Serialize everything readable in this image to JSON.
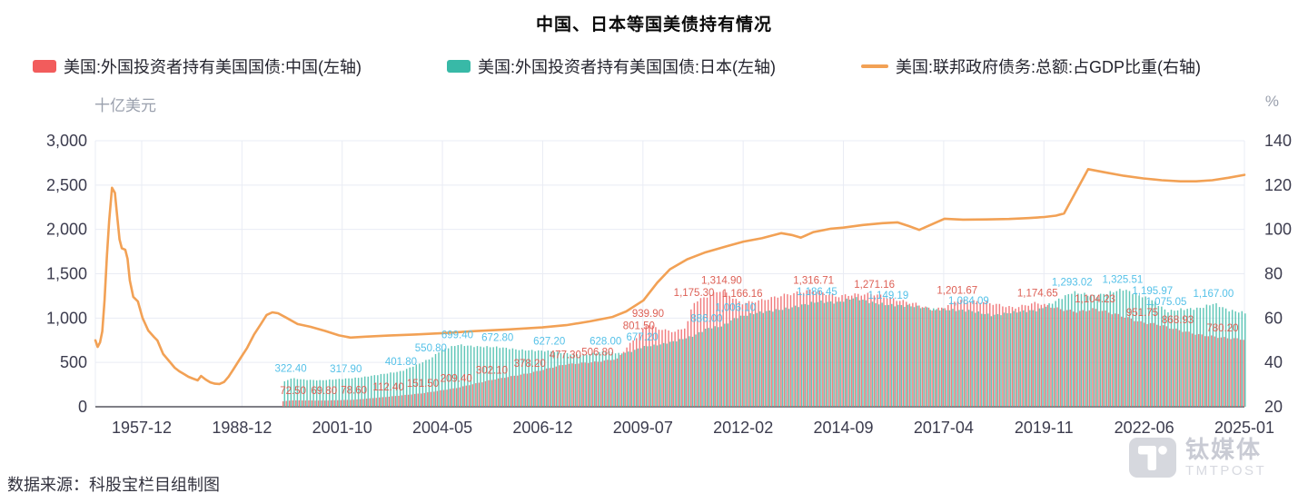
{
  "title": "中国、日本等国美债持有情况",
  "legend": [
    {
      "label": "美国:外国投资者持有美国国债:中国(左轴)",
      "color": "#f25c5c",
      "marker": "bar"
    },
    {
      "label": "美国:外国投资者持有美国国债:日本(左轴)",
      "color": "#38b9a7",
      "marker": "bar"
    },
    {
      "label": "美国:联邦政府债务:总额:占GDP比重(右轴)",
      "color": "#f2a155",
      "marker": "line"
    }
  ],
  "axes": {
    "left_unit": "十亿美元",
    "right_unit": "%",
    "left_ticks": [
      "3,000",
      "2,500",
      "2,000",
      "1,500",
      "1,000",
      "500",
      "0"
    ],
    "right_ticks": [
      "140",
      "120",
      "100",
      "80",
      "60",
      "40",
      "20"
    ],
    "x_ticks": [
      "1957-12",
      "1988-12",
      "2001-10",
      "2004-05",
      "2006-12",
      "2009-07",
      "2012-02",
      "2014-09",
      "2017-04",
      "2019-11",
      "2022-06",
      "2025-01"
    ]
  },
  "source": "数据来源：科股宝栏目组制图",
  "watermark": {
    "cn": "钛媒体",
    "en": "TMTPOST"
  },
  "chart_data": {
    "type": "combo",
    "title": "中国、日本等国美债持有情况",
    "left_axis": {
      "label": "十亿美元",
      "range": [
        0,
        3000
      ],
      "grid": true
    },
    "right_axis": {
      "label": "%",
      "range": [
        20,
        140
      ]
    },
    "x_tick_labels": [
      "1957-12",
      "1988-12",
      "2001-10",
      "2004-05",
      "2006-12",
      "2009-07",
      "2012-02",
      "2014-09",
      "2017-04",
      "2019-11",
      "2022-06",
      "2025-01"
    ],
    "x_first_tick_frac": 0.0403,
    "bars": {
      "start_frac": 0.164,
      "count": 300
    },
    "colors": {
      "china_bar": "#ee6668",
      "japan_bar": "#44bdab",
      "china_label": "#dd6056",
      "japan_label": "#54c1e8",
      "line": "#f2a155",
      "grid": "#e9ecf4",
      "axis_text": "#3c3c4e",
      "axis_line": "#55555f"
    },
    "series": [
      {
        "name": "美国:外国投资者持有美国国债:中国(左轴)",
        "key": "china",
        "type": "bar",
        "axis": "left",
        "anchors": [
          [
            0.164,
            62
          ],
          [
            0.172,
            72.5
          ],
          [
            0.199,
            69.8
          ],
          [
            0.225,
            78.6
          ],
          [
            0.255,
            112.4
          ],
          [
            0.285,
            151.5
          ],
          [
            0.314,
            209.4
          ],
          [
            0.345,
            302.1
          ],
          [
            0.378,
            378.2
          ],
          [
            0.409,
            477.3
          ],
          [
            0.437,
            506.8
          ],
          [
            0.455,
            540
          ],
          [
            0.465,
            700
          ],
          [
            0.473,
            801.5
          ],
          [
            0.481,
            939.9
          ],
          [
            0.49,
            880
          ],
          [
            0.505,
            845
          ],
          [
            0.515,
            900
          ],
          [
            0.521,
            1175.3
          ],
          [
            0.545,
            1314.9
          ],
          [
            0.563,
            1166.16
          ],
          [
            0.58,
            1200
          ],
          [
            0.6,
            1260
          ],
          [
            0.625,
            1316.71
          ],
          [
            0.645,
            1245
          ],
          [
            0.66,
            1265
          ],
          [
            0.678,
            1271.16
          ],
          [
            0.7,
            1200
          ],
          [
            0.715,
            1160
          ],
          [
            0.73,
            1090
          ],
          [
            0.74,
            1125
          ],
          [
            0.75,
            1201.67
          ],
          [
            0.775,
            1180
          ],
          [
            0.8,
            1115
          ],
          [
            0.82,
            1174.65
          ],
          [
            0.84,
            1100
          ],
          [
            0.856,
            1070
          ],
          [
            0.87,
            1104.23
          ],
          [
            0.89,
            1040
          ],
          [
            0.911,
            951.75
          ],
          [
            0.925,
            930
          ],
          [
            0.942,
            868.93
          ],
          [
            0.96,
            815
          ],
          [
            0.981,
            780.2
          ],
          [
            1.0,
            760
          ]
        ]
      },
      {
        "name": "美国:外国投资者持有美国国债:日本(左轴)",
        "key": "japan",
        "type": "bar",
        "axis": "left",
        "anchors": [
          [
            0.164,
            285
          ],
          [
            0.17,
            322.4
          ],
          [
            0.182,
            305
          ],
          [
            0.195,
            298
          ],
          [
            0.218,
            317.9
          ],
          [
            0.23,
            330
          ],
          [
            0.245,
            360
          ],
          [
            0.266,
            401.8
          ],
          [
            0.28,
            480
          ],
          [
            0.292,
            550.8
          ],
          [
            0.3,
            640
          ],
          [
            0.315,
            699.4
          ],
          [
            0.33,
            680
          ],
          [
            0.35,
            672.8
          ],
          [
            0.37,
            640
          ],
          [
            0.395,
            627.2
          ],
          [
            0.41,
            600
          ],
          [
            0.425,
            585
          ],
          [
            0.444,
            628.0
          ],
          [
            0.455,
            600
          ],
          [
            0.465,
            620
          ],
          [
            0.476,
            677.2
          ],
          [
            0.49,
            700
          ],
          [
            0.505,
            745
          ],
          [
            0.52,
            800
          ],
          [
            0.532,
            886.0
          ],
          [
            0.545,
            910
          ],
          [
            0.557,
            1006.1
          ],
          [
            0.575,
            1060
          ],
          [
            0.6,
            1105
          ],
          [
            0.628,
            1186.45
          ],
          [
            0.645,
            1175
          ],
          [
            0.66,
            1230
          ],
          [
            0.675,
            1175
          ],
          [
            0.69,
            1149.19
          ],
          [
            0.71,
            1135
          ],
          [
            0.73,
            1100
          ],
          [
            0.76,
            1084.09
          ],
          [
            0.78,
            1030
          ],
          [
            0.8,
            1070
          ],
          [
            0.82,
            1090
          ],
          [
            0.85,
            1293.02
          ],
          [
            0.87,
            1250
          ],
          [
            0.894,
            1325.51
          ],
          [
            0.92,
            1195.97
          ],
          [
            0.932,
            1075.05
          ],
          [
            0.945,
            1100
          ],
          [
            0.96,
            1110
          ],
          [
            0.973,
            1167.0
          ],
          [
            0.985,
            1090
          ],
          [
            1.0,
            1060
          ]
        ]
      },
      {
        "name": "美国:联邦政府债务:总额:占GDP比重(右轴)",
        "key": "debt_gdp",
        "type": "line",
        "axis": "right",
        "points": [
          [
            0.0,
            50
          ],
          [
            0.002,
            47
          ],
          [
            0.004,
            49
          ],
          [
            0.006,
            54
          ],
          [
            0.008,
            68
          ],
          [
            0.01,
            88
          ],
          [
            0.012,
            104
          ],
          [
            0.0145,
            118.8
          ],
          [
            0.017,
            116.5
          ],
          [
            0.019,
            106
          ],
          [
            0.021,
            95.5
          ],
          [
            0.023,
            91.5
          ],
          [
            0.026,
            90.8
          ],
          [
            0.028,
            86.8
          ],
          [
            0.03,
            77
          ],
          [
            0.033,
            69.6
          ],
          [
            0.037,
            67.5
          ],
          [
            0.041,
            60.1
          ],
          [
            0.046,
            54.4
          ],
          [
            0.051,
            51.5
          ],
          [
            0.054,
            49.9
          ],
          [
            0.059,
            43.8
          ],
          [
            0.065,
            40.1
          ],
          [
            0.069,
            37.6
          ],
          [
            0.073,
            36
          ],
          [
            0.077,
            34.8
          ],
          [
            0.081,
            33.5
          ],
          [
            0.085,
            32.7
          ],
          [
            0.089,
            31.9
          ],
          [
            0.092,
            33.9
          ],
          [
            0.096,
            32.3
          ],
          [
            0.1,
            31.0
          ],
          [
            0.104,
            30.4
          ],
          [
            0.108,
            30.3
          ],
          [
            0.112,
            31.2
          ],
          [
            0.116,
            33.6
          ],
          [
            0.12,
            36.8
          ],
          [
            0.126,
            41.7
          ],
          [
            0.132,
            46.5
          ],
          [
            0.138,
            52.5
          ],
          [
            0.144,
            57.3
          ],
          [
            0.149,
            61.4
          ],
          [
            0.154,
            62.6
          ],
          [
            0.159,
            62.2
          ],
          [
            0.166,
            60.2
          ],
          [
            0.176,
            57.3
          ],
          [
            0.187,
            56.1
          ],
          [
            0.2,
            54.2
          ],
          [
            0.212,
            52.2
          ],
          [
            0.222,
            51.2
          ],
          [
            0.235,
            51.6
          ],
          [
            0.255,
            52.1
          ],
          [
            0.278,
            52.6
          ],
          [
            0.302,
            53.2
          ],
          [
            0.33,
            54.1
          ],
          [
            0.36,
            54.9
          ],
          [
            0.389,
            55.8
          ],
          [
            0.41,
            56.8
          ],
          [
            0.43,
            58.5
          ],
          [
            0.45,
            60.5
          ],
          [
            0.462,
            63
          ],
          [
            0.477,
            68
          ],
          [
            0.489,
            76
          ],
          [
            0.5,
            82
          ],
          [
            0.515,
            86.5
          ],
          [
            0.53,
            89.5
          ],
          [
            0.55,
            92.5
          ],
          [
            0.564,
            94.5
          ],
          [
            0.58,
            96
          ],
          [
            0.597,
            98.3
          ],
          [
            0.606,
            97.5
          ],
          [
            0.614,
            96.3
          ],
          [
            0.625,
            98.8
          ],
          [
            0.64,
            100.3
          ],
          [
            0.651,
            100.8
          ],
          [
            0.668,
            102
          ],
          [
            0.685,
            102.8
          ],
          [
            0.698,
            103.2
          ],
          [
            0.708,
            101.5
          ],
          [
            0.717,
            99.8
          ],
          [
            0.728,
            102.3
          ],
          [
            0.739,
            104.8
          ],
          [
            0.755,
            104.4
          ],
          [
            0.775,
            104.5
          ],
          [
            0.795,
            104.7
          ],
          [
            0.812,
            105.1
          ],
          [
            0.826,
            105.6
          ],
          [
            0.836,
            106.2
          ],
          [
            0.843,
            107.2
          ],
          [
            0.864,
            127.2
          ],
          [
            0.878,
            125.8
          ],
          [
            0.895,
            124.2
          ],
          [
            0.912,
            123
          ],
          [
            0.928,
            122.2
          ],
          [
            0.944,
            121.7
          ],
          [
            0.958,
            121.7
          ],
          [
            0.972,
            122.2
          ],
          [
            0.986,
            123.3
          ],
          [
            1.0,
            124.6
          ]
        ]
      }
    ],
    "data_labels": [
      {
        "s": "china",
        "t": "72.50",
        "x": 0.172
      },
      {
        "s": "china",
        "t": "69.80",
        "x": 0.199
      },
      {
        "s": "china",
        "t": "78.60",
        "x": 0.225
      },
      {
        "s": "china",
        "t": "112.40",
        "x": 0.255
      },
      {
        "s": "china",
        "t": "151.50",
        "x": 0.285
      },
      {
        "s": "china",
        "t": "209.40",
        "x": 0.314
      },
      {
        "s": "china",
        "t": "302.10",
        "x": 0.345
      },
      {
        "s": "china",
        "t": "378.20",
        "x": 0.378
      },
      {
        "s": "china",
        "t": "477.30",
        "x": 0.409
      },
      {
        "s": "china",
        "t": "506.80",
        "x": 0.437
      },
      {
        "s": "china",
        "t": "801.50",
        "x": 0.473
      },
      {
        "s": "china",
        "t": "939.90",
        "x": 0.481
      },
      {
        "s": "china",
        "t": "1,175.30",
        "x": 0.521
      },
      {
        "s": "china",
        "t": "1,314.90",
        "x": 0.545
      },
      {
        "s": "china",
        "t": "1,166.16",
        "x": 0.563
      },
      {
        "s": "china",
        "t": "1,316.71",
        "x": 0.625
      },
      {
        "s": "china",
        "t": "1,271.16",
        "x": 0.678
      },
      {
        "s": "china",
        "t": "1,201.67",
        "x": 0.75
      },
      {
        "s": "china",
        "t": "1,174.65",
        "x": 0.82
      },
      {
        "s": "china",
        "t": "1,104.23",
        "x": 0.87
      },
      {
        "s": "china",
        "t": "951.75",
        "x": 0.911
      },
      {
        "s": "china",
        "t": "868.93",
        "x": 0.942
      },
      {
        "s": "china",
        "t": "780.20",
        "x": 0.981
      },
      {
        "s": "japan",
        "t": "322.40",
        "x": 0.17
      },
      {
        "s": "japan",
        "t": "317.90",
        "x": 0.218
      },
      {
        "s": "japan",
        "t": "401.80",
        "x": 0.266
      },
      {
        "s": "japan",
        "t": "550.80",
        "x": 0.292
      },
      {
        "s": "japan",
        "t": "699.40",
        "x": 0.315
      },
      {
        "s": "japan",
        "t": "672.80",
        "x": 0.35
      },
      {
        "s": "japan",
        "t": "627.20",
        "x": 0.395
      },
      {
        "s": "japan",
        "t": "628.00",
        "x": 0.444
      },
      {
        "s": "japan",
        "t": "677.20",
        "x": 0.476
      },
      {
        "s": "japan",
        "t": "886.00",
        "x": 0.532
      },
      {
        "s": "japan",
        "t": "1,006.10",
        "x": 0.557
      },
      {
        "s": "japan",
        "t": "1,186.45",
        "x": 0.628
      },
      {
        "s": "japan",
        "t": "1,149.19",
        "x": 0.69
      },
      {
        "s": "japan",
        "t": "1,084.09",
        "x": 0.76
      },
      {
        "s": "japan",
        "t": "1,293.02",
        "x": 0.85
      },
      {
        "s": "japan",
        "t": "1,325.51",
        "x": 0.894
      },
      {
        "s": "japan",
        "t": "1,195.97",
        "x": 0.92
      },
      {
        "s": "japan",
        "t": "1,075.05",
        "x": 0.932
      },
      {
        "s": "japan",
        "t": "1,167.00",
        "x": 0.973
      }
    ]
  }
}
